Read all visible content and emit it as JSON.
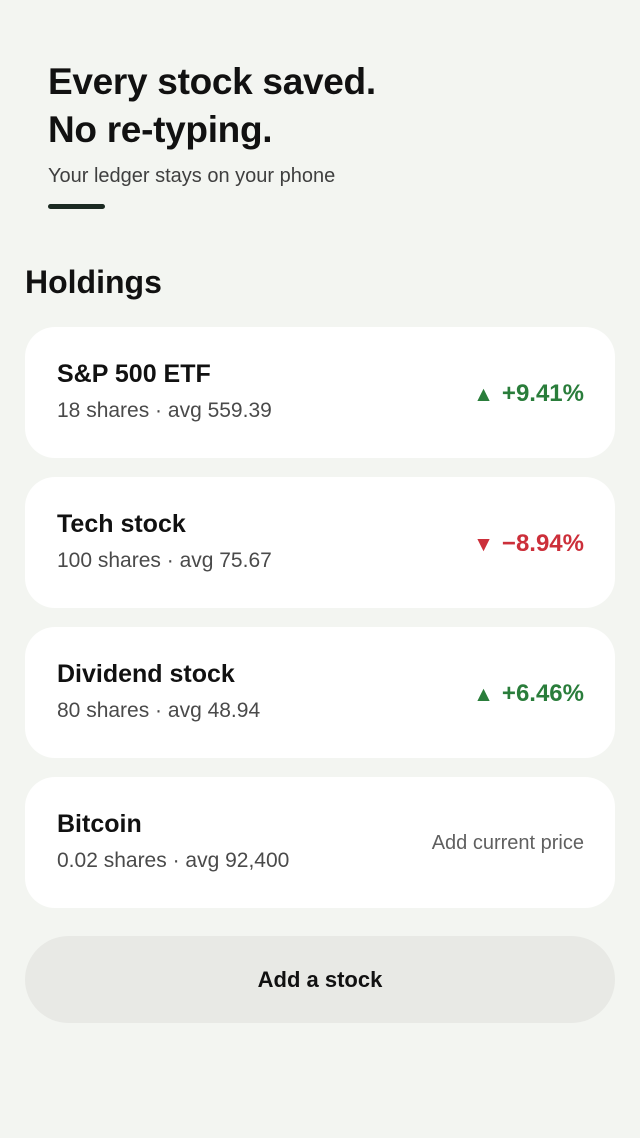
{
  "hero": {
    "headline_line1": "Every stock saved.",
    "headline_line2": "No re-typing.",
    "subtitle": "Your ledger stays on your phone"
  },
  "section": {
    "title": "Holdings"
  },
  "holdings": [
    {
      "name": "S&P 500 ETF",
      "meta": "18 shares · avg 559.39",
      "direction": "up",
      "arrow": "▲",
      "change": "+9.41%"
    },
    {
      "name": "Tech stock",
      "meta": "100 shares · avg 75.67",
      "direction": "down",
      "arrow": "▼",
      "change": "−8.94%"
    },
    {
      "name": "Dividend stock",
      "meta": "80 shares · avg 48.94",
      "direction": "up",
      "arrow": "▲",
      "change": "+6.46%"
    },
    {
      "name": "Bitcoin",
      "meta": "0.02 shares · avg 92,400",
      "action": "Add current price"
    }
  ],
  "actions": {
    "add_stock_label": "Add a stock"
  },
  "colors": {
    "background": "#f3f5f1",
    "positive": "#2a7d3b",
    "negative": "#cc2f3a",
    "accent": "#1b2a22"
  }
}
